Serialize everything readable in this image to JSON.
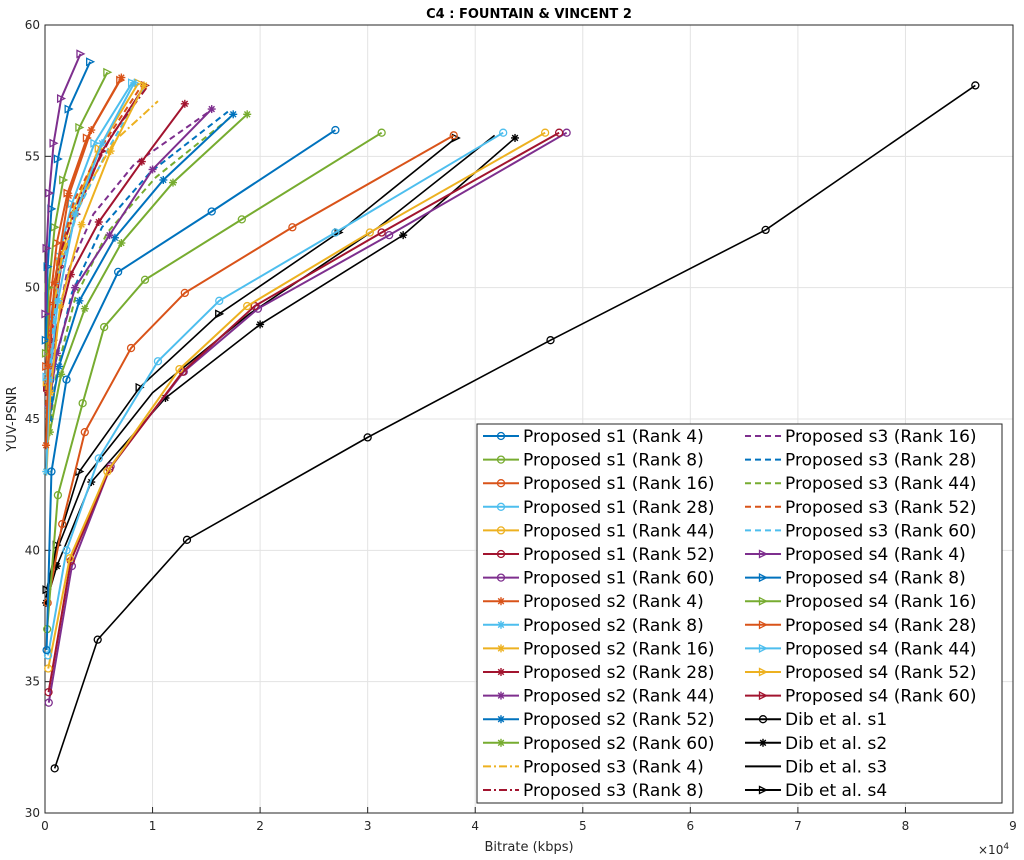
{
  "chart_data": {
    "type": "line",
    "title": "C4 : FOUNTAIN & VINCENT 2",
    "xlabel": "Bitrate (kbps)",
    "ylabel": "YUV-PSNR",
    "xlim": [
      0,
      90000
    ],
    "ylim": [
      30,
      60
    ],
    "x_ticks": [
      0,
      1,
      2,
      3,
      4,
      5,
      6,
      7,
      8,
      9
    ],
    "y_ticks": [
      30,
      35,
      40,
      45,
      50,
      55,
      60
    ],
    "x_exponent_label": "×10^4",
    "grid": true,
    "legend_position": "bottom-right",
    "legend_columns": 2,
    "series": [
      {
        "name": "Proposed s1 (Rank 4)",
        "color": "#0072BD",
        "style": "solid",
        "marker": "o",
        "x": [
          150,
          600,
          2000,
          6800,
          15500,
          27000
        ],
        "y": [
          36.2,
          43.0,
          46.5,
          50.6,
          52.9,
          56.0
        ]
      },
      {
        "name": "Proposed s1 (Rank 8)",
        "color": "#77AC30",
        "style": "solid",
        "marker": "o",
        "x": [
          200,
          1200,
          3500,
          5500,
          9300,
          18300,
          31300
        ],
        "y": [
          37.0,
          42.1,
          45.6,
          48.5,
          50.3,
          52.6,
          55.9
        ]
      },
      {
        "name": "Proposed s1 (Rank 16)",
        "color": "#D95319",
        "style": "solid",
        "marker": "o",
        "x": [
          250,
          1600,
          3700,
          8000,
          13000,
          23000,
          38000
        ],
        "y": [
          38.0,
          41.0,
          44.5,
          47.7,
          49.8,
          52.3,
          55.8
        ]
      },
      {
        "name": "Proposed s1 (Rank 28)",
        "color": "#4DBEEE",
        "style": "solid",
        "marker": "o",
        "x": [
          280,
          2000,
          5000,
          10500,
          16200,
          27000,
          42600
        ],
        "y": [
          36.0,
          40.0,
          43.5,
          47.2,
          49.5,
          52.1,
          55.9
        ]
      },
      {
        "name": "Proposed s1 (Rank 44)",
        "color": "#EDB120",
        "style": "solid",
        "marker": "o",
        "x": [
          300,
          2300,
          5800,
          12500,
          18800,
          30200,
          46500
        ],
        "y": [
          35.5,
          39.7,
          43.0,
          46.9,
          49.3,
          52.1,
          55.9
        ]
      },
      {
        "name": "Proposed s1 (Rank 52)",
        "color": "#A2142F",
        "style": "solid",
        "marker": "o",
        "x": [
          330,
          2400,
          6000,
          12800,
          19500,
          31300,
          47800
        ],
        "y": [
          34.6,
          39.6,
          43.1,
          46.8,
          49.3,
          52.1,
          55.9
        ]
      },
      {
        "name": "Proposed s1 (Rank 60)",
        "color": "#7E2F8E",
        "style": "solid",
        "marker": "o",
        "x": [
          350,
          2500,
          6100,
          12900,
          19800,
          32000,
          48500
        ],
        "y": [
          34.2,
          39.4,
          43.2,
          46.8,
          49.2,
          52.0,
          55.9
        ]
      },
      {
        "name": "Proposed s2 (Rank 4)",
        "color": "#D95319",
        "style": "solid",
        "marker": "*",
        "x": [
          100,
          300,
          900,
          2200,
          4300,
          7100
        ],
        "y": [
          44.0,
          47.0,
          50.2,
          53.5,
          56.0,
          58.0
        ]
      },
      {
        "name": "Proposed s2 (Rank 8)",
        "color": "#4DBEEE",
        "style": "solid",
        "marker": "*",
        "x": [
          120,
          400,
          1200,
          2800,
          5300,
          8300
        ],
        "y": [
          43.0,
          46.5,
          49.5,
          52.8,
          55.5,
          57.8
        ]
      },
      {
        "name": "Proposed s2 (Rank 16)",
        "color": "#EDB120",
        "style": "solid",
        "marker": "*",
        "x": [
          150,
          500,
          1400,
          3400,
          6100,
          9200
        ],
        "y": [
          43.0,
          46.0,
          49.3,
          52.4,
          55.2,
          57.7
        ]
      },
      {
        "name": "Proposed s2 (Rank 28)",
        "color": "#A2142F",
        "style": "solid",
        "marker": "*",
        "x": [
          300,
          800,
          2400,
          5000,
          9000,
          13000
        ],
        "y": [
          46.0,
          48.0,
          50.5,
          52.5,
          54.8,
          57.0
        ]
      },
      {
        "name": "Proposed s2 (Rank 44)",
        "color": "#7E2F8E",
        "style": "solid",
        "marker": "*",
        "x": [
          350,
          1100,
          2800,
          6000,
          10000,
          15500
        ],
        "y": [
          45.5,
          47.5,
          50.0,
          52.0,
          54.5,
          56.8
        ]
      },
      {
        "name": "Proposed s2 (Rank 52)",
        "color": "#0072BD",
        "style": "solid",
        "marker": "*",
        "x": [
          400,
          1300,
          3200,
          6500,
          11000,
          17500
        ],
        "y": [
          45.0,
          47.0,
          49.5,
          51.9,
          54.1,
          56.6
        ]
      },
      {
        "name": "Proposed s2 (Rank 60)",
        "color": "#77AC30",
        "style": "solid",
        "marker": "*",
        "x": [
          450,
          1500,
          3700,
          7100,
          11900,
          18800
        ],
        "y": [
          44.5,
          46.7,
          49.2,
          51.7,
          54.0,
          56.6
        ]
      },
      {
        "name": "Proposed s3 (Rank 4)",
        "color": "#EDB120",
        "style": "dashdot",
        "marker": "",
        "x": [
          100,
          500,
          1500,
          3500,
          6500,
          10500
        ],
        "y": [
          46.0,
          48.5,
          51.0,
          53.5,
          55.6,
          57.1
        ]
      },
      {
        "name": "Proposed s3 (Rank 8)",
        "color": "#A2142F",
        "style": "dashdot",
        "marker": "",
        "x": [
          100,
          500,
          1400,
          3300,
          6200,
          9600
        ],
        "y": [
          46.0,
          48.5,
          51.3,
          53.5,
          55.8,
          57.7
        ]
      },
      {
        "name": "Proposed s3 (Rank 16)",
        "color": "#7E2F8E",
        "style": "dashed",
        "marker": "",
        "x": [
          200,
          700,
          2000,
          4500,
          8300,
          15600
        ],
        "y": [
          45.0,
          47.5,
          50.5,
          52.8,
          54.7,
          56.8
        ]
      },
      {
        "name": "Proposed s3 (Rank 28)",
        "color": "#0072BD",
        "style": "dashed",
        "marker": "",
        "x": [
          250,
          900,
          2500,
          5300,
          9800,
          17000
        ],
        "y": [
          44.5,
          47.0,
          49.8,
          52.3,
          54.4,
          56.7
        ]
      },
      {
        "name": "Proposed s3 (Rank 44)",
        "color": "#77AC30",
        "style": "dashed",
        "marker": "",
        "x": [
          300,
          1100,
          2800,
          5800,
          10300,
          17600
        ],
        "y": [
          44.2,
          46.8,
          49.6,
          52.1,
          54.2,
          56.6
        ]
      },
      {
        "name": "Proposed s3 (Rank 52)",
        "color": "#D95319",
        "style": "dashed",
        "marker": "",
        "x": [
          100,
          400,
          1100,
          2700,
          5300,
          9000
        ],
        "y": [
          45.5,
          48.0,
          50.8,
          53.3,
          55.4,
          57.7
        ]
      },
      {
        "name": "Proposed s3 (Rank 60)",
        "color": "#4DBEEE",
        "style": "dashed",
        "marker": "",
        "x": [
          150,
          500,
          1300,
          3100,
          5900,
          9300
        ],
        "y": [
          45.2,
          47.6,
          50.5,
          53.0,
          55.3,
          57.7
        ]
      },
      {
        "name": "Proposed s4 (Rank 4)",
        "color": "#7E2F8E",
        "style": "solid",
        "marker": ">",
        "x": [
          50,
          150,
          400,
          800,
          1500,
          3300
        ],
        "y": [
          49.0,
          51.5,
          53.6,
          55.5,
          57.2,
          58.9
        ]
      },
      {
        "name": "Proposed s4 (Rank 8)",
        "color": "#0072BD",
        "style": "solid",
        "marker": ">",
        "x": [
          80,
          250,
          600,
          1200,
          2200,
          4200
        ],
        "y": [
          48.0,
          50.8,
          53.0,
          54.9,
          56.8,
          58.6
        ]
      },
      {
        "name": "Proposed s4 (Rank 16)",
        "color": "#77AC30",
        "style": "solid",
        "marker": ">",
        "x": [
          100,
          350,
          900,
          1700,
          3200,
          5800
        ],
        "y": [
          47.5,
          50.0,
          52.3,
          54.1,
          56.1,
          58.2
        ]
      },
      {
        "name": "Proposed s4 (Rank 28)",
        "color": "#D95319",
        "style": "solid",
        "marker": ">",
        "x": [
          120,
          450,
          1100,
          2100,
          3900,
          7000
        ],
        "y": [
          47.0,
          49.4,
          51.7,
          53.6,
          55.7,
          57.9
        ]
      },
      {
        "name": "Proposed s4 (Rank 44)",
        "color": "#4DBEEE",
        "style": "solid",
        "marker": ">",
        "x": [
          150,
          550,
          1300,
          2500,
          4600,
          8100
        ],
        "y": [
          46.6,
          48.9,
          51.2,
          53.2,
          55.5,
          57.8
        ]
      },
      {
        "name": "Proposed s4 (Rank 52)",
        "color": "#EDB120",
        "style": "solid",
        "marker": ">",
        "x": [
          170,
          600,
          1400,
          2700,
          5000,
          8700
        ],
        "y": [
          46.4,
          48.7,
          51.0,
          53.0,
          55.3,
          57.8
        ]
      },
      {
        "name": "Proposed s4 (Rank 60)",
        "color": "#A2142F",
        "style": "solid",
        "marker": ">",
        "x": [
          200,
          650,
          1500,
          2900,
          5300,
          9300
        ],
        "y": [
          46.2,
          48.5,
          50.8,
          52.8,
          55.2,
          57.7
        ]
      },
      {
        "name": "Dib et al. s1",
        "color": "#000000",
        "style": "solid",
        "marker": "o",
        "x": [
          900,
          4900,
          13200,
          30000,
          47000,
          67000,
          86500
        ],
        "y": [
          31.7,
          36.6,
          40.4,
          44.3,
          48.0,
          52.2,
          57.7
        ]
      },
      {
        "name": "Dib et al. s2",
        "color": "#000000",
        "style": "solid",
        "marker": "*",
        "x": [
          100,
          1100,
          4300,
          11200,
          20000,
          33300,
          43700
        ],
        "y": [
          38.0,
          39.4,
          42.6,
          45.8,
          48.6,
          52.0,
          55.7
        ]
      },
      {
        "name": "Dib et al. s3",
        "color": "#000000",
        "style": "solid",
        "marker": "",
        "x": [
          100,
          1000,
          3800,
          10000,
          19000,
          31000,
          41800
        ],
        "y": [
          38.2,
          39.9,
          42.8,
          46.0,
          49.0,
          52.3,
          55.8
        ]
      },
      {
        "name": "Dib et al. s4",
        "color": "#000000",
        "style": "solid",
        "marker": ">",
        "x": [
          150,
          1100,
          3200,
          8800,
          16200,
          27300,
          38200
        ],
        "y": [
          38.5,
          40.2,
          43.0,
          46.2,
          49.0,
          52.1,
          55.7
        ]
      }
    ]
  }
}
